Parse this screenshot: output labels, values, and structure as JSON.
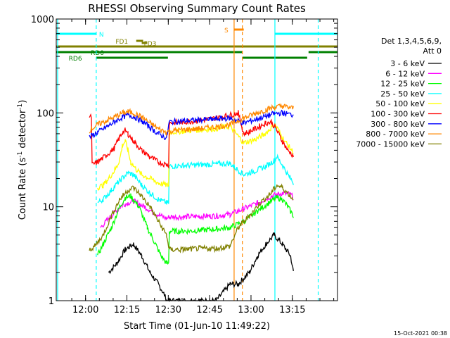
{
  "chart_data": {
    "type": "line",
    "title": "RHESSI Observing Summary Count Rates",
    "xlabel": "Start Time (01-Jun-10 11:49:22)",
    "ylabel_main": "Count Rate (s",
    "ylabel_sup1": "-1",
    "ylabel_mid": " detector",
    "ylabel_sup2": "-1",
    "ylabel_end": ")",
    "x_range_min": [
      0,
      102
    ],
    "y_log": true,
    "ylim": [
      1,
      1000
    ],
    "x_ticks": [
      {
        "label": "12:00",
        "min": 10.63
      },
      {
        "label": "12:15",
        "min": 25.63
      },
      {
        "label": "12:30",
        "min": 40.63
      },
      {
        "label": "12:45",
        "min": 55.63
      },
      {
        "label": "13:00",
        "min": 70.63
      },
      {
        "label": "13:15",
        "min": 85.63
      }
    ],
    "y_ticks": [
      {
        "label": "1",
        "value": 1
      },
      {
        "label": "10",
        "value": 10
      },
      {
        "label": "100",
        "value": 100
      },
      {
        "label": "1000",
        "value": 1000
      }
    ],
    "legend_header": [
      "Det 1,3,4,5,6,9,",
      "Att 0"
    ],
    "series": [
      {
        "name": "3 - 6 keV",
        "color": "#000000",
        "points": [
          [
            19,
            2
          ],
          [
            22,
            2.5
          ],
          [
            25,
            3.5
          ],
          [
            28,
            4
          ],
          [
            31,
            3
          ],
          [
            34,
            2
          ],
          [
            37,
            1.5
          ],
          [
            39,
            1.2
          ],
          [
            40,
            1
          ],
          [
            58,
            1
          ],
          [
            63,
            1.5
          ],
          [
            66,
            1.5
          ],
          [
            70,
            2
          ],
          [
            73,
            3
          ],
          [
            76,
            4
          ],
          [
            79,
            5
          ],
          [
            82,
            4
          ],
          [
            85,
            3
          ],
          [
            86,
            2
          ]
        ]
      },
      {
        "name": "6 - 12 keV",
        "color": "#ff00ff",
        "points": [
          [
            16,
            6
          ],
          [
            20,
            8
          ],
          [
            24,
            10.5
          ],
          [
            28,
            11.5
          ],
          [
            32,
            10
          ],
          [
            36,
            8.5
          ],
          [
            40,
            7.5
          ],
          [
            41,
            7.8
          ],
          [
            46,
            7.8
          ],
          [
            52,
            7.9
          ],
          [
            58,
            8
          ],
          [
            63,
            8.3
          ],
          [
            68,
            9.5
          ],
          [
            73,
            11
          ],
          [
            78,
            13
          ],
          [
            82,
            14
          ],
          [
            85,
            13.5
          ],
          [
            86,
            12.5
          ]
        ]
      },
      {
        "name": "12 - 25 keV",
        "color": "#00ff00",
        "points": [
          [
            15,
            3
          ],
          [
            17,
            4
          ],
          [
            20,
            6
          ],
          [
            23,
            10
          ],
          [
            25,
            12.5
          ],
          [
            27,
            13
          ],
          [
            30,
            10
          ],
          [
            33,
            6
          ],
          [
            36,
            4
          ],
          [
            38,
            3
          ],
          [
            40,
            2.5
          ],
          [
            41,
            5.5
          ],
          [
            46,
            5.5
          ],
          [
            52,
            5.6
          ],
          [
            58,
            5.8
          ],
          [
            63,
            6
          ],
          [
            68,
            7
          ],
          [
            73,
            9
          ],
          [
            77,
            11
          ],
          [
            80,
            12.5
          ],
          [
            82,
            12
          ],
          [
            84,
            10
          ],
          [
            86,
            8
          ]
        ]
      },
      {
        "name": "25 - 50 keV",
        "color": "#00ffff",
        "points": [
          [
            15,
            11
          ],
          [
            17,
            12
          ],
          [
            20,
            15
          ],
          [
            23,
            19
          ],
          [
            26,
            23
          ],
          [
            28,
            22
          ],
          [
            31,
            17
          ],
          [
            34,
            14
          ],
          [
            37,
            12
          ],
          [
            40,
            11
          ],
          [
            41,
            27
          ],
          [
            46,
            27.5
          ],
          [
            52,
            28
          ],
          [
            58,
            28.5
          ],
          [
            63,
            29
          ],
          [
            68,
            22
          ],
          [
            72,
            24
          ],
          [
            76,
            27
          ],
          [
            79,
            31
          ],
          [
            80,
            34
          ],
          [
            82,
            28
          ],
          [
            84,
            22
          ],
          [
            86,
            18
          ]
        ]
      },
      {
        "name": "50 - 100 keV",
        "color": "#ffff00",
        "points": [
          [
            15,
            16
          ],
          [
            17,
            17
          ],
          [
            19,
            20
          ],
          [
            21,
            24
          ],
          [
            22,
            27
          ],
          [
            23,
            32
          ],
          [
            24,
            45
          ],
          [
            25,
            50
          ],
          [
            26,
            40
          ],
          [
            27,
            30
          ],
          [
            29,
            25
          ],
          [
            31,
            22
          ],
          [
            34,
            20
          ],
          [
            37,
            18
          ],
          [
            40,
            17
          ],
          [
            41,
            62
          ],
          [
            46,
            64
          ],
          [
            52,
            66
          ],
          [
            58,
            68
          ],
          [
            63,
            72
          ],
          [
            68,
            48
          ],
          [
            72,
            52
          ],
          [
            75,
            58
          ],
          [
            77,
            65
          ],
          [
            79,
            75
          ],
          [
            80,
            70
          ],
          [
            82,
            55
          ],
          [
            84,
            45
          ],
          [
            86,
            38
          ]
        ]
      },
      {
        "name": "100 - 300 keV",
        "color": "#ff0000",
        "points": [
          [
            12,
            90
          ],
          [
            13,
            28
          ],
          [
            15,
            30
          ],
          [
            18,
            35
          ],
          [
            21,
            42
          ],
          [
            23,
            55
          ],
          [
            24,
            62
          ],
          [
            25,
            65
          ],
          [
            26,
            60
          ],
          [
            28,
            50
          ],
          [
            31,
            40
          ],
          [
            34,
            34
          ],
          [
            37,
            30
          ],
          [
            40,
            28
          ],
          [
            41,
            78
          ],
          [
            46,
            80
          ],
          [
            52,
            83
          ],
          [
            58,
            88
          ],
          [
            63,
            95
          ],
          [
            66,
            100
          ],
          [
            68,
            60
          ],
          [
            70,
            63
          ],
          [
            73,
            70
          ],
          [
            76,
            78
          ],
          [
            78,
            80
          ],
          [
            80,
            65
          ],
          [
            82,
            50
          ],
          [
            84,
            40
          ],
          [
            86,
            35
          ]
        ]
      },
      {
        "name": "300 - 800 keV",
        "color": "#0000ff",
        "points": [
          [
            12,
            55
          ],
          [
            15,
            62
          ],
          [
            18,
            70
          ],
          [
            21,
            80
          ],
          [
            24,
            90
          ],
          [
            26,
            95
          ],
          [
            28,
            92
          ],
          [
            31,
            82
          ],
          [
            34,
            70
          ],
          [
            37,
            60
          ],
          [
            40,
            54
          ],
          [
            41,
            80
          ],
          [
            46,
            82
          ],
          [
            52,
            84
          ],
          [
            58,
            86
          ],
          [
            63,
            88
          ],
          [
            68,
            78
          ],
          [
            72,
            85
          ],
          [
            76,
            92
          ],
          [
            79,
            98
          ],
          [
            82,
            100
          ],
          [
            86,
            95
          ]
        ]
      },
      {
        "name": "800 - 7000 keV",
        "color": "#ff8800",
        "points": [
          [
            12,
            65
          ],
          [
            15,
            75
          ],
          [
            18,
            82
          ],
          [
            21,
            90
          ],
          [
            24,
            100
          ],
          [
            26,
            103
          ],
          [
            28,
            100
          ],
          [
            31,
            90
          ],
          [
            34,
            78
          ],
          [
            37,
            68
          ],
          [
            40,
            62
          ],
          [
            41,
            64
          ],
          [
            46,
            66
          ],
          [
            52,
            68
          ],
          [
            58,
            71
          ],
          [
            63,
            75
          ],
          [
            68,
            88
          ],
          [
            72,
            98
          ],
          [
            76,
            108
          ],
          [
            79,
            115
          ],
          [
            82,
            118
          ],
          [
            86,
            112
          ]
        ]
      },
      {
        "name": "7000 - 15000 keV",
        "color": "#808000",
        "points": [
          [
            12,
            3.5
          ],
          [
            14,
            3.8
          ],
          [
            17,
            5
          ],
          [
            20,
            8
          ],
          [
            23,
            12
          ],
          [
            26,
            15
          ],
          [
            28,
            16
          ],
          [
            31,
            13
          ],
          [
            34,
            10
          ],
          [
            37,
            7
          ],
          [
            40,
            5
          ],
          [
            41,
            3.5
          ],
          [
            46,
            3.5
          ],
          [
            52,
            3.6
          ],
          [
            58,
            3.6
          ],
          [
            63,
            3.8
          ],
          [
            66,
            6
          ],
          [
            70,
            8
          ],
          [
            74,
            11
          ],
          [
            78,
            14
          ],
          [
            80,
            17
          ],
          [
            82,
            16
          ],
          [
            84,
            14
          ],
          [
            86,
            12
          ]
        ]
      }
    ],
    "vlines": [
      {
        "min": 0.5,
        "color": "#00ffff",
        "dash": false
      },
      {
        "min": 14.5,
        "color": "#00ffff",
        "dash": true
      },
      {
        "min": 64.5,
        "color": "#ff8800",
        "dash": false
      },
      {
        "min": 67.5,
        "color": "#ff8800",
        "dash": true
      },
      {
        "min": 79.3,
        "color": "#00ffff",
        "dash": false
      },
      {
        "min": 95.0,
        "color": "#00ffff",
        "dash": true
      }
    ],
    "bars": [
      {
        "label": "N",
        "color": "#00ffff",
        "row": "cyan",
        "segments": [
          [
            0,
            14.5
          ],
          [
            79.3,
            102
          ]
        ]
      },
      {
        "label": "S",
        "color": "#ff8800",
        "row": "orange",
        "segments": [
          [
            64.5,
            68
          ]
        ]
      },
      {
        "label": "FD1",
        "color": "#808000",
        "row": "fd1",
        "segments": [
          [
            29,
            31.5
          ]
        ]
      },
      {
        "label": "FD3",
        "color": "#808000",
        "row": "fd3",
        "segments": [
          [
            31,
            33
          ]
        ]
      },
      {
        "label": "",
        "color": "#808000",
        "row": "olive",
        "segments": [
          [
            0,
            102
          ]
        ]
      },
      {
        "label": "RD0",
        "color": "#008000",
        "row": "rd0",
        "segments": [
          [
            0,
            67.5
          ],
          [
            91.5,
            102
          ]
        ]
      },
      {
        "label": "RD6",
        "color": "#008000",
        "row": "rd6",
        "segments": [
          [
            14.5,
            40.5
          ],
          [
            67.5,
            91
          ]
        ]
      }
    ]
  },
  "footer_date": "15-Oct-2021 00:38"
}
